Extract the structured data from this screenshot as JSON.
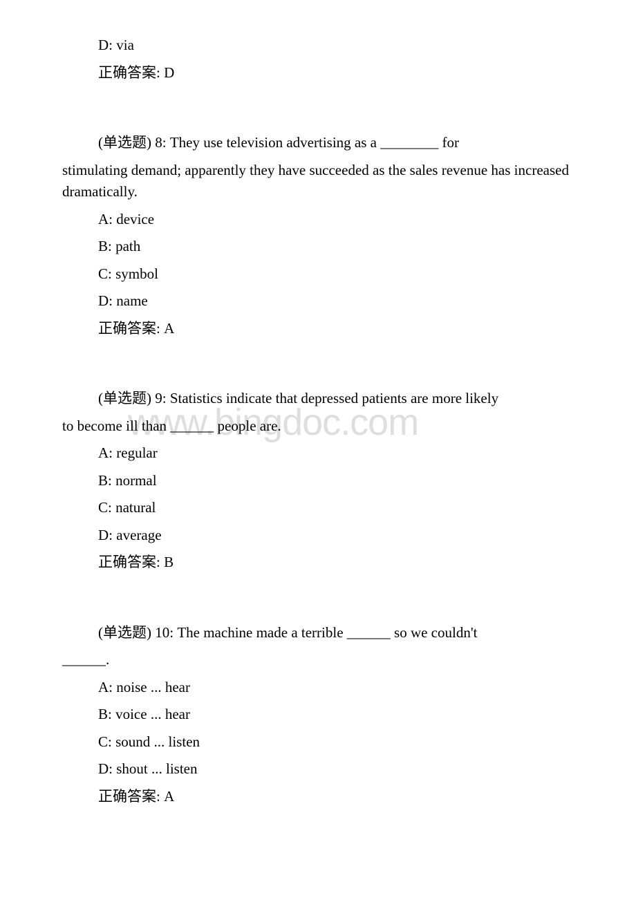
{
  "watermark": "www.bingdoc.com",
  "opening": {
    "option_d": "D: via",
    "answer": "正确答案: D"
  },
  "questions": [
    {
      "prompt_line1": "(单选题) 8: They use television advertising as a ________ for",
      "prompt_line2": "stimulating demand; apparently they have succeeded as the sales revenue has increased dramatically.",
      "option_a": "A: device",
      "option_b": "B: path",
      "option_c": "C: symbol",
      "option_d": "D: name",
      "answer": "正确答案: A"
    },
    {
      "prompt_line1": "(单选题) 9: Statistics indicate that depressed patients are more likely",
      "prompt_line2": "to become ill than ______ people are.",
      "option_a": "A: regular",
      "option_b": "B: normal",
      "option_c": "C: natural",
      "option_d": "D: average",
      "answer": "正确答案: B"
    },
    {
      "prompt_line1": "(单选题) 10: The machine made a terrible ______ so we couldn't",
      "prompt_line2": "______.",
      "option_a": "A: noise ... hear",
      "option_b": "B: voice ... hear",
      "option_c": "C: sound ... listen",
      "option_d": "D: shout ... listen",
      "answer": "正确答案: A"
    }
  ]
}
